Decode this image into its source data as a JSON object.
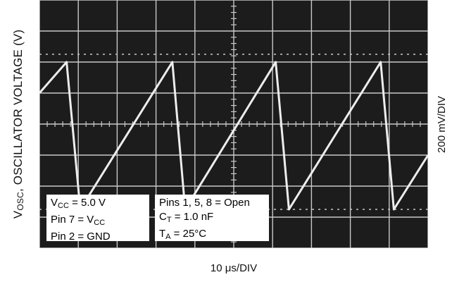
{
  "chart_data": {
    "type": "line",
    "title": "",
    "ylabel_main": "V",
    "ylabel_sub": "OSC",
    "ylabel_rest": ", OSCILLATOR VOLTAGE (V)",
    "xlabel": "10 μs/DIV",
    "yscale_label": "200 mV/DIV",
    "x_divisions": 10,
    "y_divisions": 8,
    "xlim": [
      0,
      10
    ],
    "ylim": [
      0,
      8
    ],
    "grid": true,
    "series": [
      {
        "x": [
          0,
          0.7,
          1.05,
          3.42,
          3.75,
          6.08,
          6.42,
          8.78,
          9.12,
          10
        ],
        "y": [
          5.0,
          6.0,
          1.25,
          6.0,
          1.25,
          6.0,
          1.25,
          6.0,
          1.25,
          3.0
        ]
      }
    ],
    "annotations_box1": [
      {
        "main": "V",
        "sub": "CC",
        "rest": " = 5.0 V"
      },
      {
        "main": "Pin 7 = V",
        "sub": "CC",
        "rest": ""
      },
      {
        "main": "Pin 2 = GND",
        "sub": "",
        "rest": ""
      }
    ],
    "annotations_box2": [
      {
        "main": "Pins 1, 5, 8 = Open",
        "sub": "",
        "rest": ""
      },
      {
        "main": "C",
        "sub": "T",
        "rest": " = 1.0 nF"
      },
      {
        "main": "T",
        "sub": "A",
        "rest": " = 25°C"
      }
    ],
    "colors": {
      "screen_background": "#1c1c1c",
      "grid": "#c8c8c8",
      "trace": "#ededed"
    }
  }
}
